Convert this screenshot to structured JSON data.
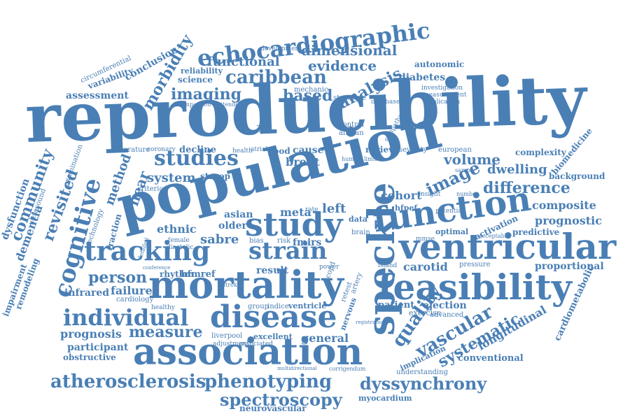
{
  "cloud": {
    "accent_color": "#4a7fb5",
    "background_color": "#ffffff",
    "words": [
      {
        "text": "reproducibility",
        "weight": 1.0
      },
      {
        "text": "population",
        "weight": 0.95
      },
      {
        "text": "ventricular",
        "weight": 0.6
      },
      {
        "text": "mortality",
        "weight": 0.55
      },
      {
        "text": "function",
        "weight": 0.55
      },
      {
        "text": "speckle",
        "weight": 0.55
      },
      {
        "text": "feasibility",
        "weight": 0.5
      },
      {
        "text": "association",
        "weight": 0.5
      },
      {
        "text": "study",
        "weight": 0.5
      },
      {
        "text": "disease",
        "weight": 0.45
      },
      {
        "text": "tracking",
        "weight": 0.45
      },
      {
        "text": "echocardiographic",
        "weight": 0.4
      },
      {
        "text": "cognitive",
        "weight": 0.4
      },
      {
        "text": "individual",
        "weight": 0.35
      },
      {
        "text": "strain",
        "weight": 0.35
      },
      {
        "text": "studies",
        "weight": 0.35
      },
      {
        "text": "atherosclerosis",
        "weight": 0.3
      },
      {
        "text": "phenotyping",
        "weight": 0.3
      },
      {
        "text": "dyssynchrony",
        "weight": 0.28
      },
      {
        "text": "spectroscopy",
        "weight": 0.28
      },
      {
        "text": "caribbean",
        "weight": 0.28
      },
      {
        "text": "quality",
        "weight": 0.28
      },
      {
        "text": "vascular",
        "weight": 0.28
      },
      {
        "text": "systematic",
        "weight": 0.25
      },
      {
        "text": "community",
        "weight": 0.25
      },
      {
        "text": "revisited",
        "weight": 0.25
      },
      {
        "text": "image",
        "weight": 0.25
      },
      {
        "text": "difference",
        "weight": 0.22
      },
      {
        "text": "morbidity",
        "weight": 0.22
      },
      {
        "text": "analysis",
        "weight": 0.22
      },
      {
        "text": "imaging",
        "weight": 0.22
      },
      {
        "text": "based",
        "weight": 0.22
      },
      {
        "text": "functional",
        "weight": 0.2
      },
      {
        "text": "evidence",
        "weight": 0.2
      },
      {
        "text": "dimensional",
        "weight": 0.2
      },
      {
        "text": "measure",
        "weight": 0.22
      },
      {
        "text": "person",
        "weight": 0.2
      },
      {
        "text": "hear",
        "weight": 0.2
      },
      {
        "text": "volume",
        "weight": 0.2
      },
      {
        "text": "dwelling",
        "weight": 0.18
      },
      {
        "text": "method",
        "weight": 0.18
      },
      {
        "text": "system",
        "weight": 0.18
      },
      {
        "text": "longitudinal",
        "weight": 0.16
      },
      {
        "text": "cohort",
        "weight": 0.16
      },
      {
        "text": "composite",
        "weight": 0.16
      },
      {
        "text": "prognostic",
        "weight": 0.16
      },
      {
        "text": "prognosis",
        "weight": 0.16
      },
      {
        "text": "sabre",
        "weight": 0.18
      },
      {
        "text": "general",
        "weight": 0.16
      },
      {
        "text": "brent",
        "weight": 0.16
      },
      {
        "text": "left",
        "weight": 0.18
      },
      {
        "text": "failure",
        "weight": 0.16
      },
      {
        "text": "infrared",
        "weight": 0.14
      },
      {
        "text": "ethnic",
        "weight": 0.16
      },
      {
        "text": "older",
        "weight": 0.14
      },
      {
        "text": "asian",
        "weight": 0.14
      },
      {
        "text": "meta",
        "weight": 0.16
      },
      {
        "text": "result",
        "weight": 0.14
      },
      {
        "text": "fmirs",
        "weight": 0.14
      },
      {
        "text": "carotid",
        "weight": 0.16
      },
      {
        "text": "conclusion",
        "weight": 0.14
      },
      {
        "text": "assessment",
        "weight": 0.14
      },
      {
        "text": "variability",
        "weight": 0.13
      },
      {
        "text": "circumferential",
        "weight": 0.1
      },
      {
        "text": "reliability",
        "weight": 0.12
      },
      {
        "text": "science",
        "weight": 0.12
      },
      {
        "text": "diabetes",
        "weight": 0.14
      },
      {
        "text": "autonomic",
        "weight": 0.12
      },
      {
        "text": "development",
        "weight": 0.1
      },
      {
        "text": "dementia",
        "weight": 0.16
      },
      {
        "text": "dysfunction",
        "weight": 0.14
      },
      {
        "text": "impairment",
        "weight": 0.12
      },
      {
        "text": "remodeling",
        "weight": 0.12
      },
      {
        "text": "ultrasound",
        "weight": 0.1
      },
      {
        "text": "examination",
        "weight": 0.1
      },
      {
        "text": "technology",
        "weight": 0.1
      },
      {
        "text": "fraction",
        "weight": 0.12
      },
      {
        "text": "cardiometabolic",
        "weight": 0.13
      },
      {
        "text": "proportional",
        "weight": 0.14
      },
      {
        "text": "conventional",
        "weight": 0.13
      },
      {
        "text": "predictive",
        "weight": 0.12
      },
      {
        "text": "activation",
        "weight": 0.12
      },
      {
        "text": "optimal",
        "weight": 0.11
      },
      {
        "text": "background",
        "weight": 0.12
      },
      {
        "text": "biomedicine",
        "weight": 0.12
      },
      {
        "text": "complexity",
        "weight": 0.12
      },
      {
        "text": "european",
        "weight": 0.1
      },
      {
        "text": "patient",
        "weight": 0.14
      },
      {
        "text": "ejection",
        "weight": 0.14
      },
      {
        "text": "exercise",
        "weight": 0.11
      },
      {
        "text": "advanced",
        "weight": 0.1
      },
      {
        "text": "pressure",
        "weight": 0.1
      },
      {
        "text": "implication",
        "weight": 0.11
      },
      {
        "text": "understanding",
        "weight": 0.1
      },
      {
        "text": "myocardium",
        "weight": 0.11
      },
      {
        "text": "neurovascular",
        "weight": 0.12
      },
      {
        "text": "participant",
        "weight": 0.14
      },
      {
        "text": "obstructive",
        "weight": 0.12
      },
      {
        "text": "excellent",
        "weight": 0.11
      },
      {
        "text": "liverpool",
        "weight": 0.1
      },
      {
        "text": "adjustment",
        "weight": 0.09
      },
      {
        "text": "associated",
        "weight": 0.09
      },
      {
        "text": "ventricle",
        "weight": 0.11
      },
      {
        "text": "indice",
        "weight": 0.1
      },
      {
        "text": "group",
        "weight": 0.1
      },
      {
        "text": "hfmref",
        "weight": 0.13
      },
      {
        "text": "rhythm",
        "weight": 0.12
      },
      {
        "text": "cardiology",
        "weight": 0.1
      },
      {
        "text": "healthy",
        "weight": 0.09
      },
      {
        "text": "criterion",
        "weight": 0.1
      },
      {
        "text": "decline",
        "weight": 0.13
      },
      {
        "text": "stroop",
        "weight": 0.12
      },
      {
        "text": "literature",
        "weight": 0.1
      },
      {
        "text": "coronary",
        "weight": 0.09
      },
      {
        "text": "cause",
        "weight": 0.14
      },
      {
        "text": "good",
        "weight": 0.12
      },
      {
        "text": "review",
        "weight": 0.12
      },
      {
        "text": "severity",
        "weight": 0.1
      },
      {
        "text": "structure",
        "weight": 0.1
      },
      {
        "text": "mechanic",
        "weight": 0.1
      },
      {
        "text": "investigation",
        "weight": 0.09
      },
      {
        "text": "measurement",
        "weight": 0.09
      },
      {
        "text": "publication",
        "weight": 0.09
      },
      {
        "text": "database",
        "weight": 0.09
      },
      {
        "text": "control",
        "weight": 0.1
      },
      {
        "text": "african",
        "weight": 0.1
      },
      {
        "text": "sympatho",
        "weight": 0.09
      },
      {
        "text": "plaque",
        "weight": 0.1
      },
      {
        "text": "attendee",
        "weight": 0.08
      },
      {
        "text": "comparison",
        "weight": 0.08
      },
      {
        "text": "insight",
        "weight": 0.09
      },
      {
        "text": "hfpef",
        "weight": 0.11
      },
      {
        "text": "potential",
        "weight": 0.09
      },
      {
        "text": "number",
        "weight": 0.08
      },
      {
        "text": "sample",
        "weight": 0.08
      },
      {
        "text": "acceptable",
        "weight": 0.08
      },
      {
        "text": "data",
        "weight": 0.11
      },
      {
        "text": "brain",
        "weight": 0.1
      },
      {
        "text": "retest",
        "weight": 0.1
      },
      {
        "text": "artery",
        "weight": 0.1
      },
      {
        "text": "nervous",
        "weight": 0.11
      },
      {
        "text": "copd",
        "weight": 0.1
      },
      {
        "text": "island",
        "weight": 0.09
      },
      {
        "text": "power",
        "weight": 0.09
      },
      {
        "text": "bias",
        "weight": 0.1
      },
      {
        "text": "risk",
        "weight": 0.1
      },
      {
        "text": "female",
        "weight": 0.09
      },
      {
        "text": "diastolic",
        "weight": 0.09
      },
      {
        "text": "detailed",
        "weight": 0.08
      },
      {
        "text": "human",
        "weight": 0.08
      },
      {
        "text": "limited",
        "weight": 0.08
      },
      {
        "text": "mmse",
        "weight": 0.09
      },
      {
        "text": "rate",
        "weight": 0.09
      },
      {
        "text": "health",
        "weight": 0.09
      },
      {
        "text": "atrial",
        "weight": 0.09
      },
      {
        "text": "stroke",
        "weight": 0.08
      },
      {
        "text": "conference",
        "weight": 0.07
      },
      {
        "text": "registration",
        "weight": 0.07
      },
      {
        "text": "corrigendum",
        "weight": 0.07
      },
      {
        "text": "multidirectional",
        "weight": 0.07
      }
    ]
  }
}
